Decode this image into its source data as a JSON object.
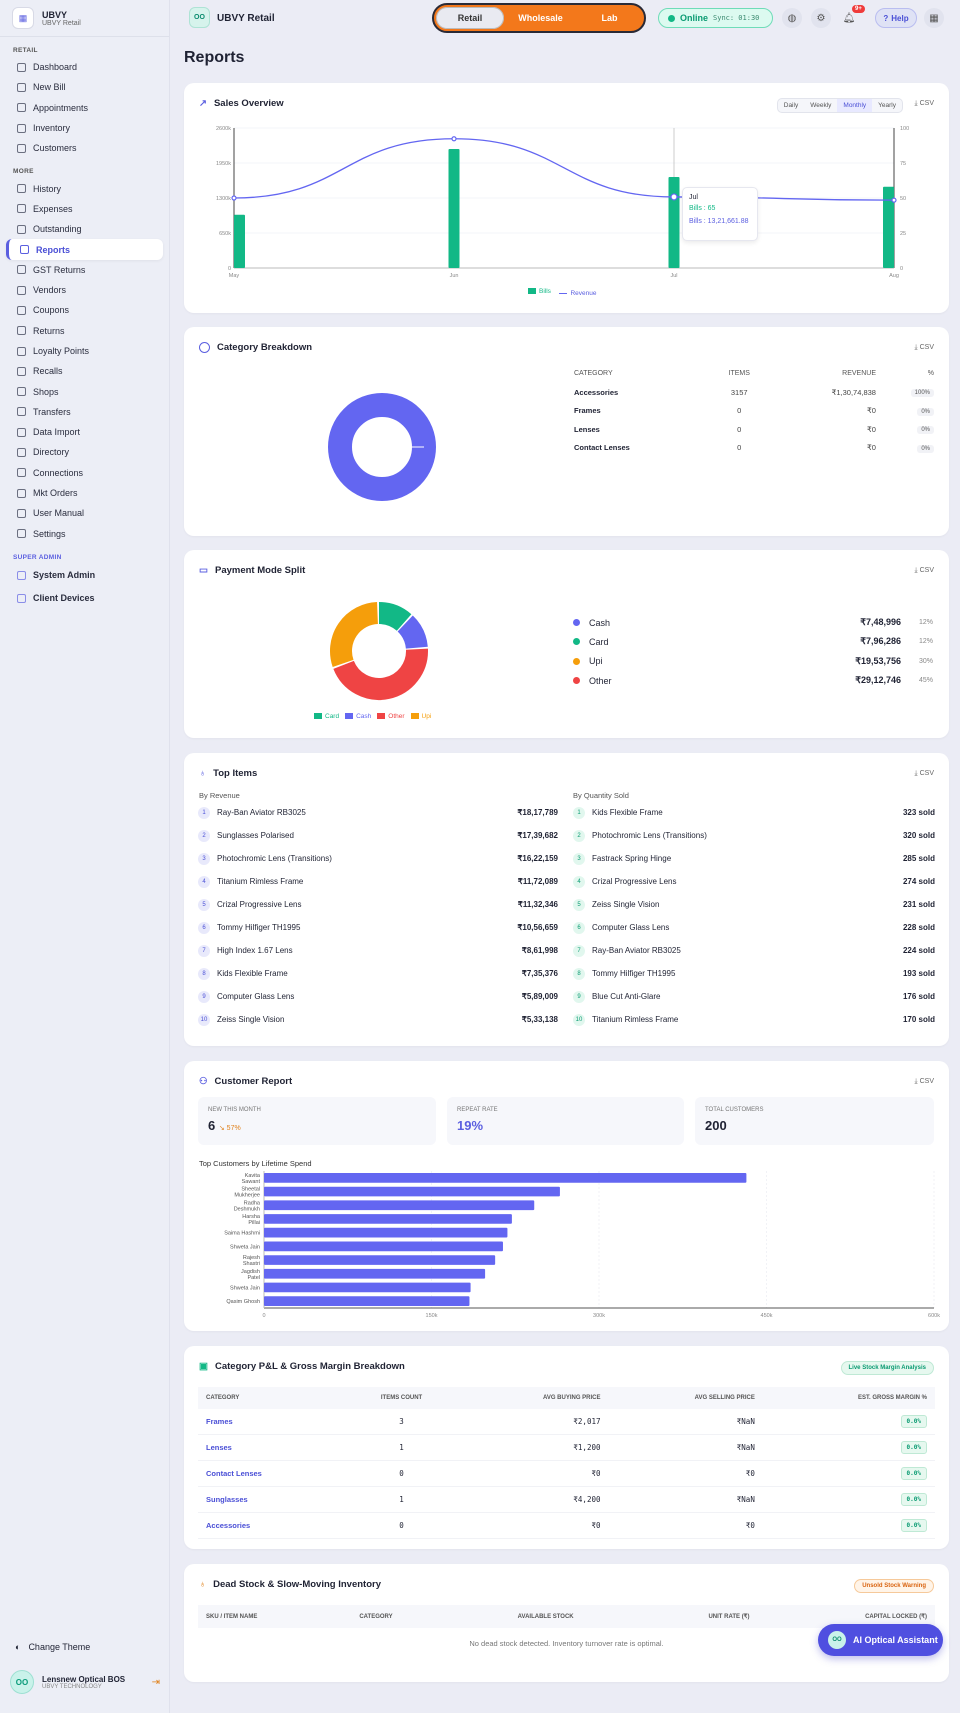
{
  "sidebar": {
    "brand_title": "UBVY",
    "brand_sub": "UBVY Retail",
    "sec_retail": "RETAIL",
    "sec_more": "MORE",
    "sec_super": "SUPER ADMIN",
    "retail_items": [
      "Dashboard",
      "New Bill",
      "Appointments",
      "Inventory",
      "Customers"
    ],
    "more_items": [
      "History",
      "Expenses",
      "Outstanding",
      "Reports",
      "GST Returns",
      "Vendors",
      "Coupons",
      "Returns",
      "Loyalty Points",
      "Recalls",
      "Shops",
      "Transfers",
      "Data Import",
      "Directory",
      "Connections",
      "Mkt Orders",
      "User Manual",
      "Settings"
    ],
    "super_items": [
      "System Admin",
      "Client Devices"
    ],
    "change_theme": "Change Theme",
    "user_name": "Lensnew Optical BOS",
    "user_sub": "UBVY TECHNOLOGY"
  },
  "topbar": {
    "title": "UBVY Retail",
    "modes": [
      "Retail",
      "Wholesale",
      "Lab"
    ],
    "online": "Online",
    "sync": "Sync: 01:30",
    "badge": "9+",
    "help": "Help"
  },
  "page_title": "Reports",
  "sales": {
    "title": "Sales Overview",
    "tabs": [
      "Daily",
      "Weekly",
      "Monthly",
      "Yearly"
    ],
    "csv": "CSV",
    "tooltip_month": "Jul",
    "tooltip_bills": "Bills : 65",
    "tooltip_rev": "Bills : 13,21,661.88",
    "legend_bills": "Bills",
    "legend_revenue": "Revenue"
  },
  "chart_data": [
    {
      "type": "bar+line",
      "categories": [
        "May",
        "Jun",
        "Jul",
        "Aug"
      ],
      "series": [
        {
          "name": "Bills",
          "axis": "right",
          "values": [
            38,
            85,
            65,
            58
          ]
        },
        {
          "name": "Revenue",
          "axis": "left",
          "values": [
            1300000,
            2400000,
            1320000,
            1260000
          ]
        }
      ],
      "ylim_left": [
        0,
        2600000
      ],
      "yticks_left": [
        "2600k",
        "1950k",
        "1300k",
        "650k",
        "0"
      ],
      "ylim_right": [
        0,
        100
      ],
      "yticks_right": [
        "100",
        "75",
        "50",
        "25",
        "0"
      ]
    },
    {
      "type": "pie",
      "title": "Category Breakdown",
      "labels": [
        "Accessories"
      ],
      "values": [
        100
      ]
    },
    {
      "type": "pie",
      "title": "Payment Mode Split",
      "labels": [
        "Card",
        "Cash",
        "Other",
        "Upi"
      ],
      "values": [
        12,
        12,
        45,
        30
      ],
      "colors": [
        "#12b886",
        "#6366f1",
        "#ef4444",
        "#f59e0b"
      ]
    },
    {
      "type": "bar",
      "title": "Top Customers by Lifetime Spend",
      "categories": [
        "Kavita Sawant",
        "Sheetal Mukherjee",
        "Radha Deshmukh",
        "Harsha Pillai",
        "Saima Hashmi",
        "Shweta Jain",
        "Rajesh Shastri",
        "Jagdish Patel",
        "Shweta Jain",
        "Qasim Ghosh"
      ],
      "values": [
        432000,
        265000,
        242000,
        222000,
        218000,
        214000,
        207000,
        198000,
        185000,
        184000
      ],
      "xticks": [
        "0",
        "150k",
        "300k",
        "450k",
        "600k"
      ],
      "xlim": [
        0,
        600000
      ]
    }
  ],
  "category": {
    "title": "Category Breakdown",
    "csv": "CSV",
    "headers": [
      "CATEGORY",
      "ITEMS",
      "REVENUE",
      "%"
    ],
    "rows": [
      [
        "Accessories",
        "3157",
        "₹1,30,74,838",
        "100%"
      ],
      [
        "Frames",
        "0",
        "₹0",
        "0%"
      ],
      [
        "Lenses",
        "0",
        "₹0",
        "0%"
      ],
      [
        "Contact Lenses",
        "0",
        "₹0",
        "0%"
      ]
    ]
  },
  "payment": {
    "title": "Payment Mode Split",
    "csv": "CSV",
    "rows": [
      [
        "Cash",
        "₹7,48,996",
        "12%"
      ],
      [
        "Card",
        "₹7,96,286",
        "12%"
      ],
      [
        "Upi",
        "₹19,53,756",
        "30%"
      ],
      [
        "Other",
        "₹29,12,746",
        "45%"
      ]
    ],
    "legend": [
      "Card",
      "Cash",
      "Other",
      "Upi"
    ]
  },
  "top": {
    "title": "Top Items",
    "csv": "CSV",
    "rev_head": "By Revenue",
    "qty_head": "By Quantity Sold",
    "rev": [
      [
        "Ray-Ban Aviator RB3025",
        "₹18,17,789"
      ],
      [
        "Sunglasses Polarised",
        "₹17,39,682"
      ],
      [
        "Photochromic Lens (Transitions)",
        "₹16,22,159"
      ],
      [
        "Titanium Rimless Frame",
        "₹11,72,089"
      ],
      [
        "Crizal Progressive Lens",
        "₹11,32,346"
      ],
      [
        "Tommy Hilfiger TH1995",
        "₹10,56,659"
      ],
      [
        "High Index 1.67 Lens",
        "₹8,61,998"
      ],
      [
        "Kids Flexible Frame",
        "₹7,35,376"
      ],
      [
        "Computer Glass Lens",
        "₹5,89,009"
      ],
      [
        "Zeiss Single Vision",
        "₹5,33,138"
      ]
    ],
    "qty": [
      [
        "Kids Flexible Frame",
        "323 sold"
      ],
      [
        "Photochromic Lens (Transitions)",
        "320 sold"
      ],
      [
        "Fastrack Spring Hinge",
        "285 sold"
      ],
      [
        "Crizal Progressive Lens",
        "274 sold"
      ],
      [
        "Zeiss Single Vision",
        "231 sold"
      ],
      [
        "Computer Glass Lens",
        "228 sold"
      ],
      [
        "Ray-Ban Aviator RB3025",
        "224 sold"
      ],
      [
        "Tommy Hilfiger TH1995",
        "193 sold"
      ],
      [
        "Blue Cut Anti-Glare",
        "176 sold"
      ],
      [
        "Titanium Rimless Frame",
        "170 sold"
      ]
    ]
  },
  "customer": {
    "title": "Customer Report",
    "csv": "CSV",
    "new_label": "NEW THIS MONTH",
    "new_val": "6",
    "new_delta": "57%",
    "repeat_label": "REPEAT RATE",
    "repeat_val": "19%",
    "total_label": "TOTAL CUSTOMERS",
    "total_val": "200",
    "chart_title": "Top Customers by Lifetime Spend"
  },
  "pnl": {
    "title": "Category P&L & Gross Margin Breakdown",
    "pill": "Live Stock Margin Analysis",
    "headers": [
      "CATEGORY",
      "ITEMS COUNT",
      "AVG BUYING PRICE",
      "AVG SELLING PRICE",
      "EST. GROSS MARGIN %"
    ],
    "rows": [
      [
        "Frames",
        "3",
        "₹2,017",
        "₹NaN",
        "0.0%"
      ],
      [
        "Lenses",
        "1",
        "₹1,200",
        "₹NaN",
        "0.0%"
      ],
      [
        "Contact Lenses",
        "0",
        "₹0",
        "₹0",
        "0.0%"
      ],
      [
        "Sunglasses",
        "1",
        "₹4,200",
        "₹NaN",
        "0.0%"
      ],
      [
        "Accessories",
        "0",
        "₹0",
        "₹0",
        "0.0%"
      ]
    ]
  },
  "dead": {
    "title": "Dead Stock & Slow-Moving Inventory",
    "pill": "Unsold Stock Warning",
    "headers": [
      "SKU / ITEM NAME",
      "CATEGORY",
      "AVAILABLE STOCK",
      "UNIT RATE (₹)",
      "CAPITAL LOCKED (₹)"
    ],
    "empty": "No dead stock detected. Inventory turnover rate is optimal."
  },
  "ai_button": "AI Optical Assistant",
  "colors": {
    "accent": "#5b5fe0",
    "bars": "#12b886",
    "orange": "#f3781b"
  }
}
